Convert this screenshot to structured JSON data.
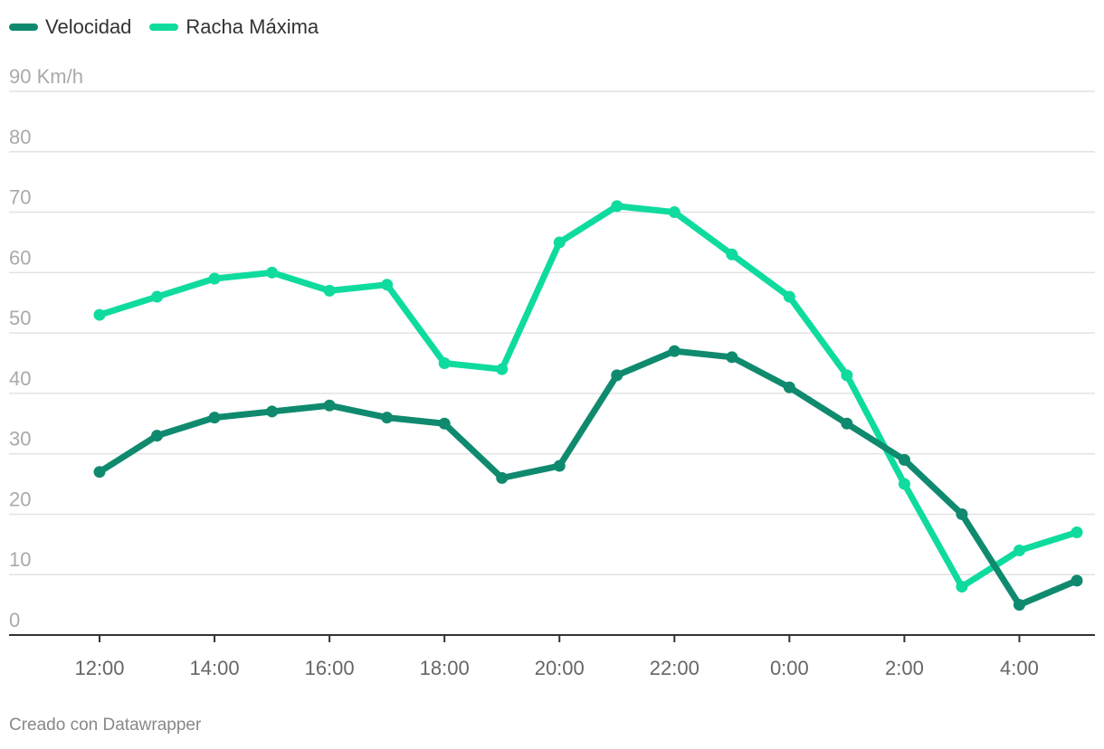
{
  "chart_data": {
    "type": "line",
    "y_unit": "Km/h",
    "ylim": [
      0,
      90
    ],
    "y_ticks": [
      {
        "value": 0,
        "label": "0"
      },
      {
        "value": 10,
        "label": "10"
      },
      {
        "value": 20,
        "label": "20"
      },
      {
        "value": 30,
        "label": "30"
      },
      {
        "value": 40,
        "label": "40"
      },
      {
        "value": 50,
        "label": "50"
      },
      {
        "value": 60,
        "label": "60"
      },
      {
        "value": 70,
        "label": "70"
      },
      {
        "value": 80,
        "label": "80"
      },
      {
        "value": 90,
        "label": "90 Km/h"
      }
    ],
    "x": [
      "12:00",
      "13:00",
      "14:00",
      "15:00",
      "16:00",
      "17:00",
      "18:00",
      "19:00",
      "20:00",
      "21:00",
      "22:00",
      "23:00",
      "0:00",
      "1:00",
      "2:00",
      "3:00",
      "4:00",
      "5:00"
    ],
    "x_tick_labels": [
      "12:00",
      "14:00",
      "16:00",
      "18:00",
      "20:00",
      "22:00",
      "0:00",
      "2:00",
      "4:00"
    ],
    "grid": true,
    "legend_position": "top-left",
    "series": [
      {
        "name": "Velocidad",
        "color": "#0f8a6e",
        "values": [
          27,
          33,
          36,
          37,
          38,
          36,
          35,
          26,
          28,
          43,
          47,
          46,
          41,
          35,
          29,
          20,
          5,
          9
        ]
      },
      {
        "name": "Racha Máxima",
        "color": "#0fdb9e",
        "values": [
          53,
          56,
          59,
          60,
          57,
          58,
          45,
          44,
          65,
          71,
          70,
          63,
          56,
          43,
          25,
          8,
          14,
          17
        ]
      }
    ]
  },
  "footer": {
    "credit": "Creado con Datawrapper"
  }
}
